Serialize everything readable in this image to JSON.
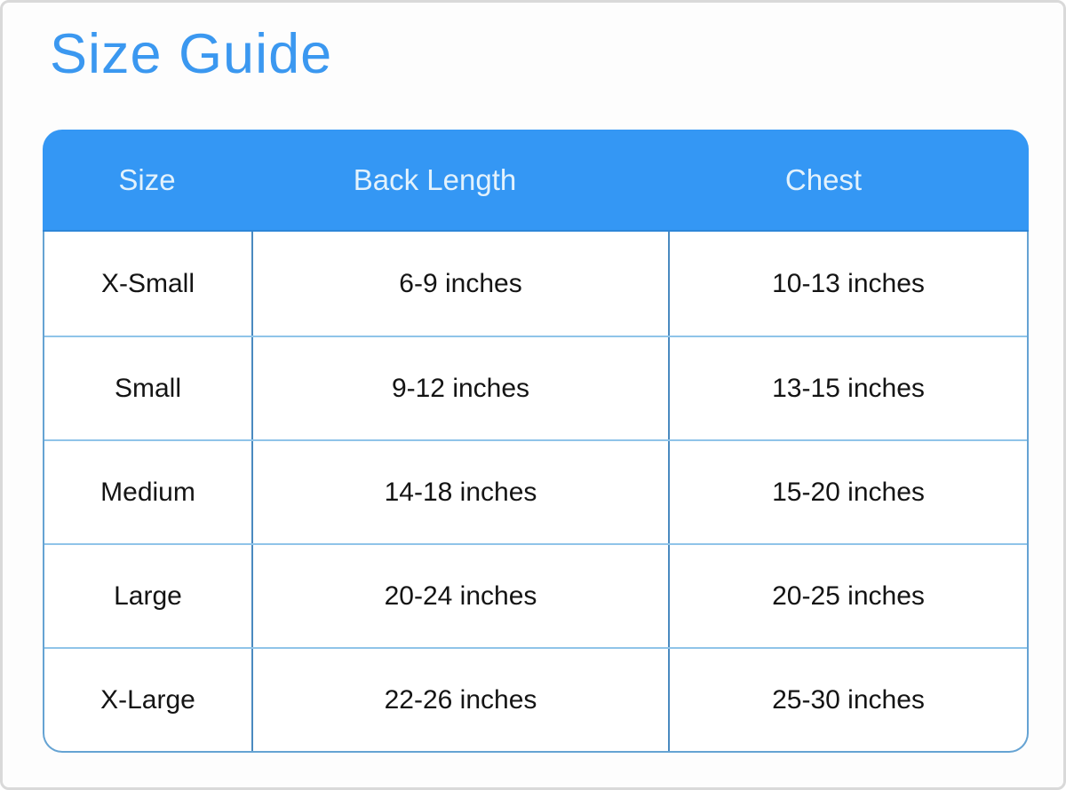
{
  "page": {
    "title": "Size Guide"
  },
  "colors": {
    "title_text": "#3b98f0",
    "header_bg": "#3497f4",
    "header_edge": "#2d86d8",
    "header_text": "#e3f2fc",
    "grid_vertical": "#4a8ac0",
    "grid_horizontal": "#8fc4e9",
    "table_border": "#65a3d3",
    "cell_text": "#141414",
    "page_border": "#d9d9d9",
    "page_bg": "#fdfdfd"
  },
  "chart_data": {
    "type": "table",
    "title": "Size Guide",
    "columns": [
      "Size",
      "Back Length",
      "Chest"
    ],
    "rows": [
      [
        "X-Small",
        "6-9 inches",
        "10-13 inches"
      ],
      [
        "Small",
        "9-12 inches",
        "13-15 inches"
      ],
      [
        "Medium",
        "14-18 inches",
        "15-20 inches"
      ],
      [
        "Large",
        "20-24 inches",
        "20-25 inches"
      ],
      [
        "X-Large",
        "22-26 inches",
        "25-30 inches"
      ]
    ]
  }
}
